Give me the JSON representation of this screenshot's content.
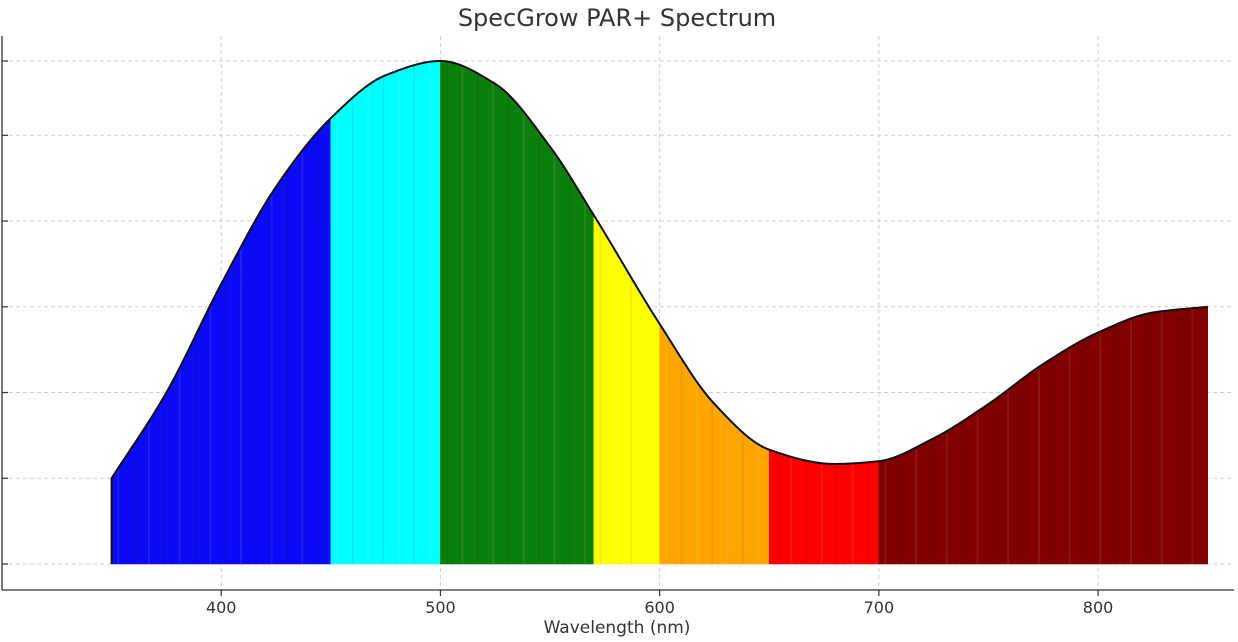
{
  "chart_data": {
    "type": "area",
    "title": "SpecGrow PAR+ Spectrum",
    "xlabel": "Wavelength (nm)",
    "ylabel": "",
    "xlim": [
      300,
      862
    ],
    "ylim": [
      0,
      1.0
    ],
    "x_ticks": [
      400,
      500,
      600,
      700,
      800
    ],
    "x_tick_labels": [
      "400",
      "500",
      "600",
      "700",
      "800"
    ],
    "y_ticks": [
      0.12,
      0.27,
      0.42,
      0.57,
      0.72,
      0.87,
      1.0
    ],
    "grid": true,
    "x": [
      350,
      375,
      400,
      425,
      450,
      475,
      500,
      525,
      550,
      570,
      600,
      625,
      650,
      680,
      700,
      725,
      750,
      775,
      800,
      825,
      850
    ],
    "values": [
      0.27,
      0.42,
      0.61,
      0.78,
      0.9,
      0.975,
      1.0,
      0.96,
      0.85,
      0.73,
      0.54,
      0.4,
      0.32,
      0.295,
      0.3,
      0.34,
      0.4,
      0.47,
      0.525,
      0.56,
      0.57
    ],
    "bands": [
      {
        "name": "blue",
        "start": 350,
        "end": 450,
        "color": "#0a0af5"
      },
      {
        "name": "cyan",
        "start": 450,
        "end": 500,
        "color": "#00ffff"
      },
      {
        "name": "green",
        "start": 500,
        "end": 570,
        "color": "#0b7f0b"
      },
      {
        "name": "yellow",
        "start": 570,
        "end": 600,
        "color": "#ffff00"
      },
      {
        "name": "orange",
        "start": 600,
        "end": 650,
        "color": "#ffa500"
      },
      {
        "name": "red",
        "start": 650,
        "end": 700,
        "color": "#ff0000"
      },
      {
        "name": "far-red",
        "start": 700,
        "end": 850,
        "color": "#800000"
      }
    ]
  }
}
